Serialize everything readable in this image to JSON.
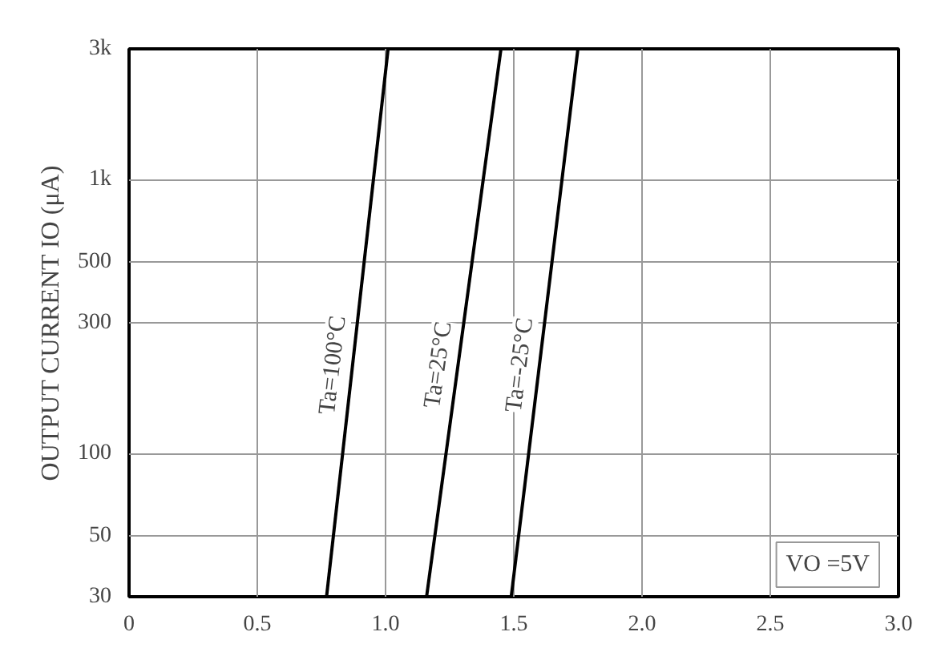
{
  "chart_data": {
    "type": "line",
    "ylabel": "OUTPUT CURRENT IO (μA)",
    "series": [
      {
        "name": "Ta=100°C",
        "color": "#000000",
        "x": [
          0.77,
          1.01
        ],
        "values": [
          30,
          3000
        ]
      },
      {
        "name": "Ta=25°C",
        "color": "#000000",
        "x": [
          1.16,
          1.45
        ],
        "values": [
          30,
          3000
        ]
      },
      {
        "name": "Ta=-25°C",
        "color": "#000000",
        "x": [
          1.49,
          1.75
        ],
        "values": [
          30,
          3000
        ]
      }
    ],
    "xlim": [
      0,
      3
    ],
    "xticks": [
      0,
      0.5,
      {
        "value": 1,
        "label": "1.0"
      },
      1.5,
      {
        "value": 2,
        "label": "2.0"
      },
      2.5,
      {
        "value": 3,
        "label": "3.0"
      }
    ],
    "ylim": [
      30,
      3000
    ],
    "yticks": [
      30,
      50,
      100,
      300,
      500,
      {
        "value": 1000,
        "label": "1k"
      },
      {
        "value": 3000,
        "label": "3k"
      }
    ],
    "log": "y",
    "grid": true,
    "marker": "none",
    "line_style": "solid",
    "annotations": [
      "VO =5V"
    ]
  }
}
